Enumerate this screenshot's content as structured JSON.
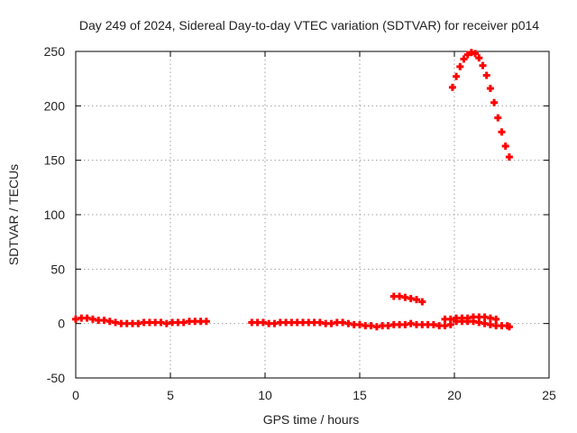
{
  "chart_data": {
    "type": "scatter",
    "title": "Day 249 of 2024, Sidereal Day-to-day VTEC variation (SDTVAR) for receiver p014",
    "xlabel": "GPS time / hours",
    "ylabel": "SDTVAR / TECUs",
    "xlim": [
      0,
      25
    ],
    "ylim": [
      -50,
      250
    ],
    "xticks": [
      0,
      5,
      10,
      15,
      20,
      25
    ],
    "yticks": [
      -50,
      0,
      50,
      100,
      150,
      200,
      250
    ],
    "grid": true,
    "marker_color": "#ff0000",
    "series": [
      {
        "name": "SDTVAR",
        "points": [
          [
            0.0,
            4
          ],
          [
            0.3,
            5
          ],
          [
            0.6,
            5
          ],
          [
            0.9,
            4
          ],
          [
            1.2,
            3
          ],
          [
            1.5,
            3
          ],
          [
            1.8,
            2
          ],
          [
            2.1,
            1
          ],
          [
            2.4,
            0
          ],
          [
            2.7,
            0
          ],
          [
            3.0,
            0
          ],
          [
            3.3,
            0
          ],
          [
            3.6,
            1
          ],
          [
            3.9,
            1
          ],
          [
            4.2,
            1
          ],
          [
            4.5,
            1
          ],
          [
            4.8,
            0
          ],
          [
            5.1,
            1
          ],
          [
            5.4,
            1
          ],
          [
            5.7,
            1
          ],
          [
            6.0,
            2
          ],
          [
            6.3,
            2
          ],
          [
            6.6,
            2
          ],
          [
            6.9,
            2
          ],
          [
            9.3,
            1
          ],
          [
            9.6,
            1
          ],
          [
            9.9,
            1
          ],
          [
            10.2,
            0
          ],
          [
            10.5,
            0
          ],
          [
            10.8,
            1
          ],
          [
            11.1,
            1
          ],
          [
            11.4,
            1
          ],
          [
            11.7,
            1
          ],
          [
            12.0,
            1
          ],
          [
            12.3,
            1
          ],
          [
            12.6,
            1
          ],
          [
            12.9,
            1
          ],
          [
            13.2,
            0
          ],
          [
            13.5,
            0
          ],
          [
            13.8,
            1
          ],
          [
            14.1,
            1
          ],
          [
            14.4,
            0
          ],
          [
            14.7,
            -1
          ],
          [
            15.0,
            -1
          ],
          [
            15.3,
            -2
          ],
          [
            15.6,
            -2
          ],
          [
            15.9,
            -3
          ],
          [
            16.2,
            -2
          ],
          [
            16.5,
            -2
          ],
          [
            16.8,
            -1
          ],
          [
            17.1,
            -1
          ],
          [
            17.4,
            -1
          ],
          [
            17.7,
            0
          ],
          [
            18.0,
            -1
          ],
          [
            18.3,
            -1
          ],
          [
            18.6,
            -1
          ],
          [
            18.9,
            -1
          ],
          [
            19.2,
            -2
          ],
          [
            19.5,
            -2
          ],
          [
            19.8,
            -1
          ],
          [
            16.8,
            25
          ],
          [
            17.1,
            25
          ],
          [
            17.4,
            24
          ],
          [
            17.7,
            23
          ],
          [
            18.0,
            22
          ],
          [
            18.3,
            20
          ],
          [
            19.5,
            4
          ],
          [
            19.8,
            4
          ],
          [
            20.1,
            5
          ],
          [
            20.4,
            5
          ],
          [
            20.7,
            5
          ],
          [
            21.0,
            6
          ],
          [
            21.3,
            6
          ],
          [
            21.6,
            6
          ],
          [
            21.9,
            5
          ],
          [
            22.2,
            4
          ],
          [
            20.1,
            2
          ],
          [
            20.4,
            2
          ],
          [
            20.7,
            2
          ],
          [
            21.0,
            2
          ],
          [
            21.3,
            1
          ],
          [
            21.6,
            0
          ],
          [
            21.9,
            -1
          ],
          [
            22.2,
            -2
          ],
          [
            22.5,
            -2
          ],
          [
            22.8,
            -2
          ],
          [
            22.9,
            -3
          ],
          [
            19.9,
            217
          ],
          [
            20.1,
            227
          ],
          [
            20.3,
            236
          ],
          [
            20.5,
            243
          ],
          [
            20.7,
            247
          ],
          [
            20.9,
            249
          ],
          [
            21.1,
            248
          ],
          [
            21.3,
            244
          ],
          [
            21.5,
            237
          ],
          [
            21.7,
            228
          ],
          [
            21.9,
            216
          ],
          [
            22.1,
            203
          ],
          [
            22.3,
            189
          ],
          [
            22.5,
            176
          ],
          [
            22.7,
            163
          ],
          [
            22.9,
            153
          ]
        ]
      }
    ]
  }
}
